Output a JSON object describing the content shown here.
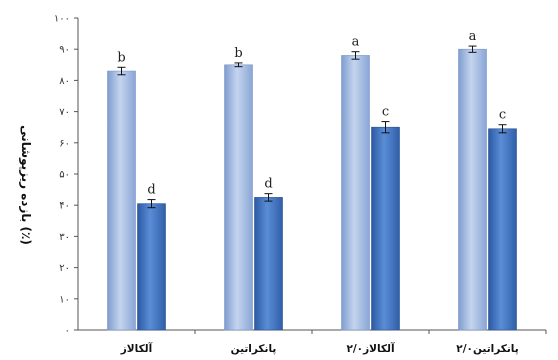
{
  "chart_data": {
    "type": "bar",
    "title": "",
    "xlabel": "",
    "ylabel": "بازده ریزپوشانی (٪)",
    "ylim": [
      0,
      100
    ],
    "yticks": [
      {
        "value": 0,
        "label": "۰"
      },
      {
        "value": 10,
        "label": "۱۰"
      },
      {
        "value": 20,
        "label": "۲۰"
      },
      {
        "value": 30,
        "label": "۳۰"
      },
      {
        "value": 40,
        "label": "۴۰"
      },
      {
        "value": 50,
        "label": "۵۰"
      },
      {
        "value": 60,
        "label": "۶۰"
      },
      {
        "value": 70,
        "label": "۷۰"
      },
      {
        "value": 80,
        "label": "۸۰"
      },
      {
        "value": 90,
        "label": "۹۰"
      },
      {
        "value": 100,
        "label": "۱۰۰"
      }
    ],
    "grid": false,
    "legend": "none",
    "categories": [
      "آلکالاز",
      "پانکراتین",
      "آلکالاز۲/۰",
      "پانکراتین۲/۰"
    ],
    "series": [
      {
        "color": "#9fb8e0",
        "values": [
          83,
          85,
          88,
          90
        ],
        "errors": [
          1.2,
          0.6,
          1.2,
          1.0
        ],
        "labels": [
          "b",
          "b",
          "a",
          "a"
        ]
      },
      {
        "color": "#3f74c0",
        "values": [
          40.5,
          42.5,
          65,
          64.5
        ],
        "errors": [
          1.3,
          1.2,
          1.8,
          1.3
        ],
        "labels": [
          "d",
          "d",
          "c",
          "c"
        ]
      }
    ]
  }
}
